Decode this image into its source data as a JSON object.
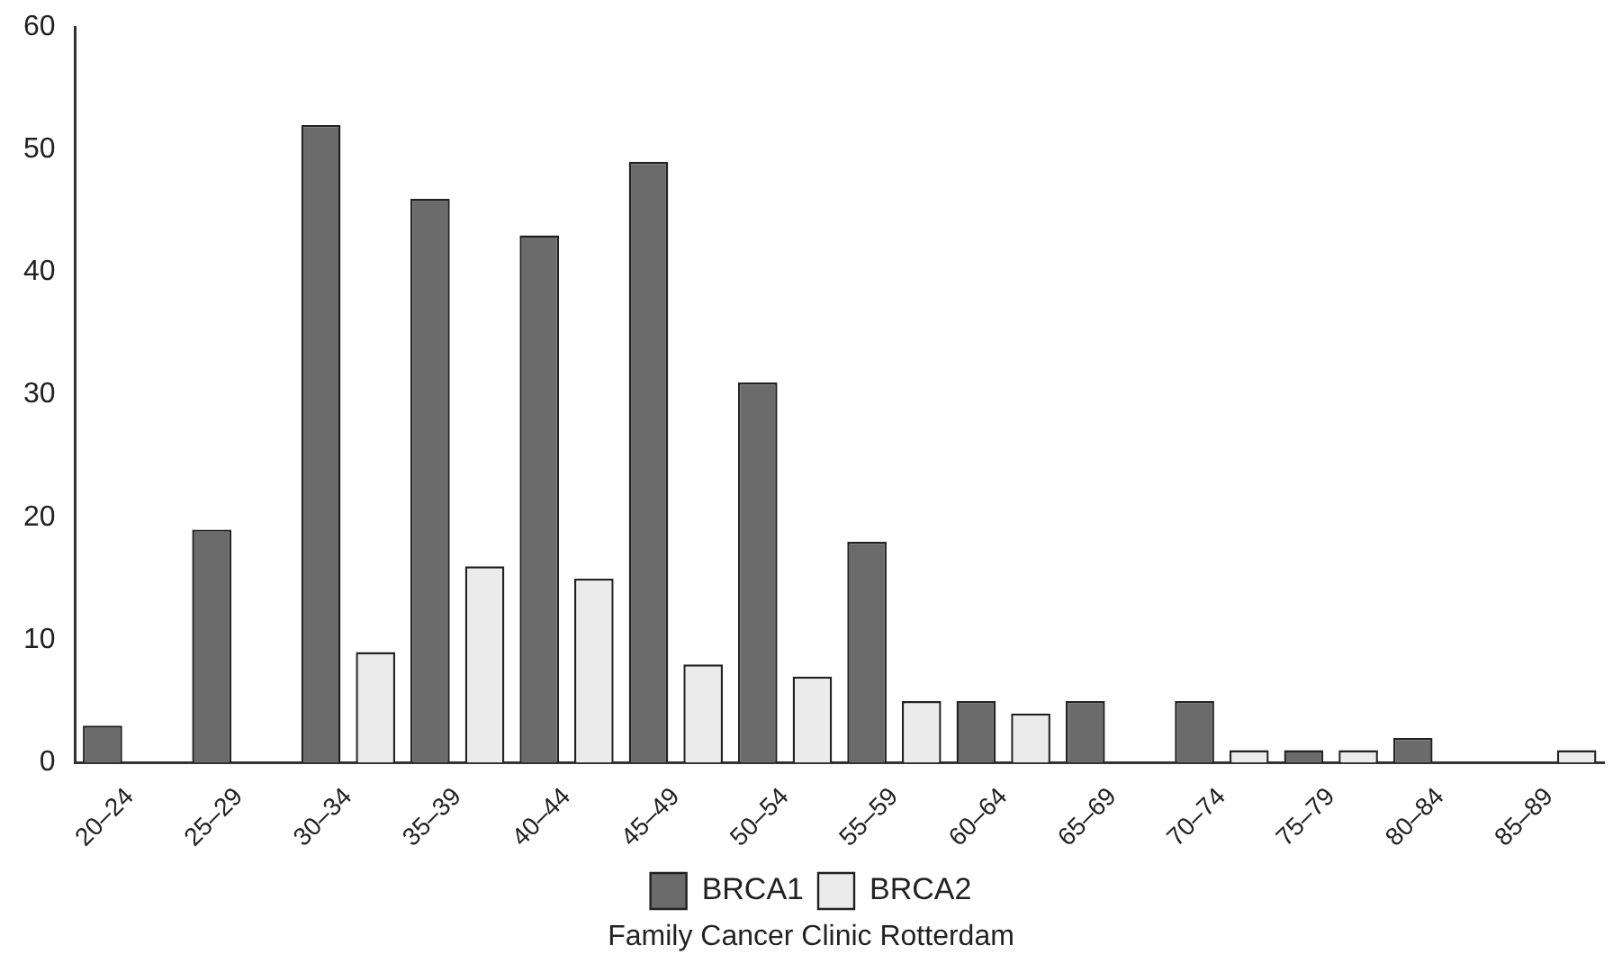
{
  "chart_data": {
    "type": "bar",
    "categories": [
      "20–24",
      "25–29",
      "30–34",
      "35–39",
      "40–44",
      "45–49",
      "50–54",
      "55–59",
      "60–64",
      "65–69",
      "70–74",
      "75–79",
      "80–84",
      "85–89"
    ],
    "series": [
      {
        "name": "BRCA1",
        "color": "#6b6b6b",
        "values": [
          3,
          19,
          52,
          46,
          43,
          49,
          31,
          18,
          5,
          5,
          5,
          1,
          2,
          0
        ]
      },
      {
        "name": "BRCA2",
        "color": "#ebebeb",
        "values": [
          0,
          0,
          9,
          16,
          15,
          8,
          7,
          5,
          4,
          0,
          1,
          1,
          0,
          1
        ]
      }
    ],
    "ylim": [
      0,
      60
    ],
    "yticks": [
      0,
      10,
      20,
      30,
      40,
      50,
      60
    ],
    "grid": false,
    "legend": "bottom",
    "annotations": [
      "Family Cancer Clinic Rotterdam"
    ]
  }
}
